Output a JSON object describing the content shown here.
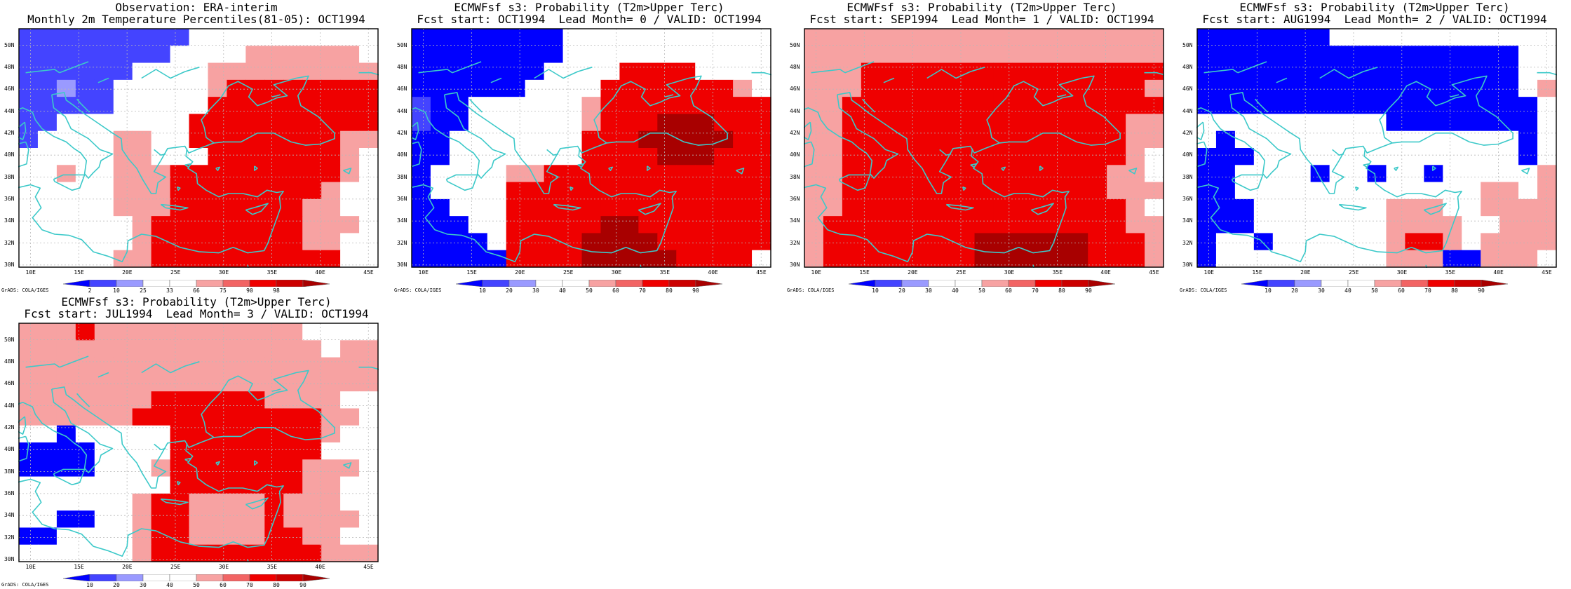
{
  "colors": {
    "blue3": "#0000ff",
    "blue2": "#4444ff",
    "blue1": "#9a9aff",
    "white": "#ffffff",
    "red1": "#f7a2a2",
    "red2": "#f26464",
    "red3": "#ef0000",
    "red4": "#cc0000",
    "red5": "#a80000",
    "coast": "#3cc9c9",
    "frame": "#000000",
    "grid": "#b8b8b8"
  },
  "panels": [
    {
      "title1": "Observation: ERA-interim",
      "title2": "Monthly 2m Temperature Percentiles(81-05): OCT1994",
      "colorbar_labels": [
        "2",
        "10",
        "25",
        "33",
        "66",
        "75",
        "90",
        "98"
      ],
      "grads": "GrADS: COLA/IGES",
      "grid": [
        "bbbbbbbbb..........",
        "bbbbbbbb....rrrrrr.",
        "bbbbbb....rrrrrrrrr",
        "bbabb.....rRRRRRRRR",
        "bbbbb.....RRRRRRRRR",
        "bb.......RRRRRRRRRR",
        "b....rr..RRRRRRRRrr",
        ".....rr...RRRRRRRr.",
        "..r..rrrRRRRRRRRRr.",
        ".....rrrRRRRRRRRr..",
        ".....rrrRRRRRRRrr..",
        "......rRRRRRRRRrrr.",
        "......rRRRRRRRRrr..",
        ".....rrRRRRRRRRRR.."
      ]
    },
    {
      "title1": "ECMWFsf s3: Probability (T2m>Upper Terc)",
      "title2": "Fcst start: OCT1994  Lead Month= 0 / VALID: OCT1994",
      "colorbar_labels": [
        "10",
        "20",
        "30",
        "40",
        "50",
        "60",
        "70",
        "80",
        "90"
      ],
      "grads": "GrADS: COLA/IGES",
      "grid": [
        "BBBBBBBB...........",
        "BBBBBBBB...........",
        "BBBBBBB....RRRR....",
        "BBBBBB....RRRRRRRr.",
        "bBB......rRRRRRRRRR",
        "bBB......rRRRDDDRRR",
        "BB.......RRRDDDDDRR",
        "BB.......RRRRDDDRRR",
        "B....rrRRRRRRRRRRRR",
        "B....RRRRRRRRRRRRRR",
        "BB...RRRRRRRRRRRRRR",
        "BBB..RRRRRDDRRRRRRR",
        "BBBB.RRRRDDDDRRRRRR",
        "BBBBBRRRRDDDDDRRRR."
      ]
    },
    {
      "title1": "ECMWFsf s3: Probability (T2m>Upper Terc)",
      "title2": "Fcst start: SEP1994  Lead Month= 1 / VALID: OCT1994",
      "colorbar_labels": [
        "10",
        "20",
        "30",
        "40",
        "50",
        "60",
        "70",
        "80",
        "90"
      ],
      "grads": "GrADS: COLA/IGES",
      "grid": [
        "rrrrrrrrrrrrrrrrrrr",
        "rrrrrrrrrrrrrrrrrrr",
        "rrrRRRRRRRRRRRRRRRR",
        "rrrRRRRRRRRRRRRRRRr",
        "rrRRRRRRRRRRRRRRRRR",
        "rrRRRRRRRRRRRRRRRrr",
        "rrRRRRRRRRRRRRRRRrr",
        "rrRRRRRRRRRRRRRRRr.",
        "rrRRRRRRRRRRRRRRrr.",
        "rrRRRRRRRRRRRRRRrrr",
        "rrRRRRRRRRRRRRRRRr.",
        "rRRRRRRRRRRRRRRRRrr",
        "rRRRRRRRRDDDDDDRRRr",
        "rRRRRRRRRDDDDDDRRRr"
      ]
    },
    {
      "title1": "ECMWFsf s3: Probability (T2m>Upper Terc)",
      "title2": "Fcst start: AUG1994  Lead Month= 2 / VALID: OCT1994",
      "colorbar_labels": [
        "10",
        "20",
        "30",
        "40",
        "50",
        "60",
        "70",
        "80",
        "90"
      ],
      "grads": "GrADS: COLA/IGES",
      "grid": [
        "BBBBBBB............",
        "BBBBBBBBBBBBBBBBB..",
        "BBBBBBBBBBBBBBBBB..",
        "BBBBBBBBBBBBBBBBB.r",
        "BBBBBBBBBBBBBBBBBB.",
        "..........BBBBBBBB.",
        ".B...............B.",
        "BBB..............B.",
        "BB....B..B..B.....r",
        "BB.............rr.r",
        "BBB.......rrr..rrrr",
        "BBB.......rrrr..rrr",
        "B..B......rRRr.rrrr",
        "B.........rrrBBrrr."
      ]
    },
    {
      "title1": "ECMWFsf s3: Probability (T2m>Upper Terc)",
      "title2": "Fcst start: JUL1994  Lead Month= 3 / VALID: OCT1994",
      "colorbar_labels": [
        "10",
        "20",
        "30",
        "40",
        "50",
        "60",
        "70",
        "80",
        "90"
      ],
      "grads": "GrADS: COLA/IGES",
      "grid": [
        "rrrRrrrrrrrrrrr....",
        "rrrrrrrrrrrrrrrr.rr",
        "rrrrrrrrrrrrrrrrrrr",
        "rrrrrrrrrrrrrrrrrrr",
        "rrrrrrrRRRRRRrrrr..",
        "rrrrrrRRRRRRRRRRrr.",
        "..B.....RRRRRRRRr..",
        "BBBB....RRRRRRRR...",
        "BBBB...rRRRRRRRrrr.",
        "........RRRRRRRrr..",
        "......rRRrrrrRrrr..",
        "..BB..rRRrrrrRrrrr.",
        "BB....rRRrrrrRRrr..",
        "......rRRRRRRRRRrrr"
      ]
    }
  ],
  "legend_codes": {
    "B": "blue3",
    "b": "blue2",
    "a": "blue1",
    ".": "white",
    "r": "red1",
    "R": "red3",
    "D": "red5"
  },
  "x_tick_labels": [
    "10E",
    "15E",
    "20E",
    "25E",
    "30E",
    "35E",
    "40E",
    "45E"
  ],
  "y_tick_labels": [
    "50N",
    "48N",
    "46N",
    "44N",
    "42N",
    "40N",
    "38N",
    "36N",
    "34N",
    "32N",
    "30N"
  ]
}
